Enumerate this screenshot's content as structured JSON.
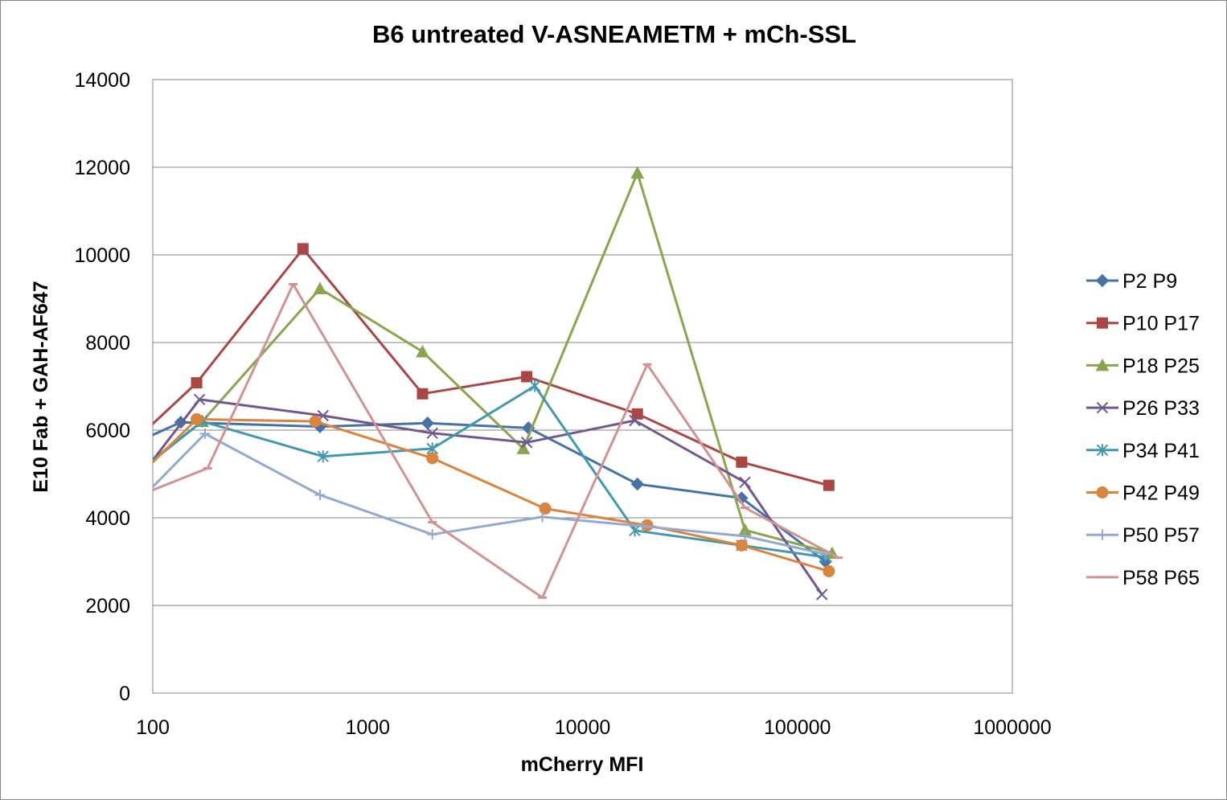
{
  "chart_data": {
    "type": "line",
    "title": "B6 untreated V-ASNEAMETM + mCh-SSL",
    "xlabel": "mCherry MFI",
    "ylabel": "E10 Fab + GAH-AF647",
    "xscale": "log",
    "xlim": [
      100,
      1000000
    ],
    "ylim": [
      0,
      14000
    ],
    "xticks": [
      100,
      1000,
      10000,
      100000,
      1000000
    ],
    "xtick_labels": [
      "100",
      "1000",
      "10000",
      "100000",
      "1000000"
    ],
    "yticks": [
      0,
      2000,
      4000,
      6000,
      8000,
      10000,
      12000,
      14000
    ],
    "ytick_labels": [
      "0",
      "2000",
      "4000",
      "6000",
      "8000",
      "10000",
      "12000",
      "14000"
    ],
    "grid": "horizontal",
    "legend_position": "right",
    "series": [
      {
        "name": "P2 P9",
        "color": "#4572A7",
        "marker": "diamond",
        "x": [
          60,
          135,
          600,
          1900,
          5600,
          18000,
          55000,
          135000
        ],
        "y": [
          5400,
          6180,
          6080,
          6160,
          6050,
          4770,
          4450,
          3000
        ]
      },
      {
        "name": "P10 P17",
        "color": "#AA4643",
        "marker": "square",
        "x": [
          80,
          160,
          500,
          1800,
          5500,
          18000,
          55000,
          140000
        ],
        "y": [
          5700,
          7080,
          10140,
          6830,
          7220,
          6370,
          5270,
          4740
        ]
      },
      {
        "name": "P18 P25",
        "color": "#89A54E",
        "marker": "triangle",
        "x": [
          60,
          170,
          600,
          1800,
          5300,
          18000,
          57000,
          145000
        ],
        "y": [
          4500,
          6200,
          9230,
          7790,
          5580,
          11870,
          3720,
          3190
        ]
      },
      {
        "name": "P26 P33",
        "color": "#71588F",
        "marker": "x",
        "x": [
          60,
          165,
          620,
          2000,
          5500,
          17500,
          57000,
          130000
        ],
        "y": [
          3900,
          6700,
          6330,
          5930,
          5720,
          6220,
          4810,
          2250
        ]
      },
      {
        "name": "P34 P41",
        "color": "#4198AF",
        "marker": "asterisk",
        "x": [
          70,
          170,
          620,
          2000,
          6000,
          17500,
          55000,
          135000
        ],
        "y": [
          4700,
          6200,
          5400,
          5580,
          7010,
          3710,
          3370,
          3100
        ]
      },
      {
        "name": "P42 P49",
        "color": "#DB843D",
        "marker": "circle",
        "x": [
          60,
          160,
          570,
          2000,
          6700,
          20000,
          55000,
          140000
        ],
        "y": [
          4200,
          6250,
          6200,
          5360,
          4210,
          3830,
          3370,
          2780
        ]
      },
      {
        "name": "P50 P57",
        "color": "#93A9CF",
        "marker": "plus",
        "x": [
          60,
          175,
          600,
          2000,
          6500,
          19000,
          57000,
          135000
        ],
        "y": [
          3600,
          5920,
          4520,
          3620,
          4020,
          3810,
          3580,
          3170
        ]
      },
      {
        "name": "P58 P65",
        "color": "#D19392",
        "marker": "dash",
        "x": [
          60,
          180,
          450,
          2000,
          6500,
          20000,
          57000,
          155000
        ],
        "y": [
          4200,
          5130,
          9330,
          3900,
          2180,
          7500,
          4230,
          3090
        ]
      }
    ]
  }
}
